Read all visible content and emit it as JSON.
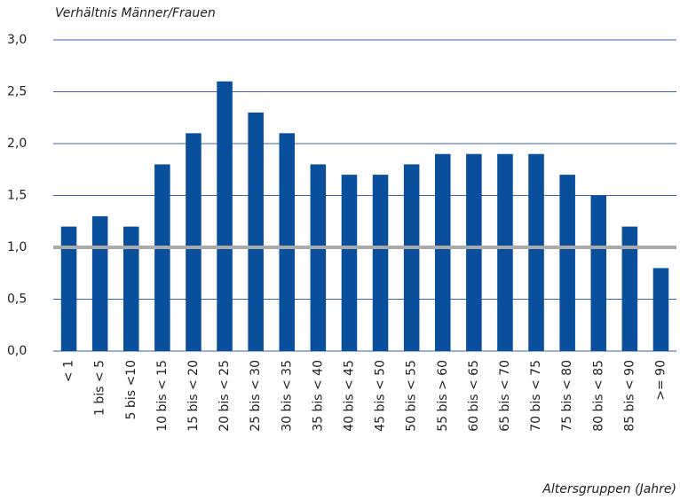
{
  "chart_data": {
    "type": "bar",
    "title": "Verhältnis Männer/Frauen",
    "x_label": "Altersgruppen (Jahre)",
    "categories": [
      "< 1",
      "1 bis < 5",
      "5 bis <10",
      "10 bis < 15",
      "15 bis < 20",
      "20 bis < 25",
      "25 bis < 30",
      "30 bis < 35",
      "35 bis < 40",
      "40 bis < 45",
      "45 bis < 50",
      "50 bis < 55",
      "55 bis > 60",
      "60 bis < 65",
      "65 bis < 70",
      "70 bis < 75",
      "75 bis < 80",
      "80 bis < 85",
      "85 bis < 90",
      ">= 90"
    ],
    "values": [
      1.2,
      1.3,
      1.2,
      1.8,
      2.1,
      2.6,
      2.3,
      2.1,
      1.8,
      1.7,
      1.7,
      1.8,
      1.9,
      1.9,
      1.9,
      1.9,
      1.7,
      1.5,
      1.2,
      0.8
    ],
    "color": "#0a4f9c",
    "ylim": [
      0,
      3
    ],
    "yticks": [
      {
        "value": 0,
        "label": "0,0"
      },
      {
        "value": 0.5,
        "label": "0,5"
      },
      {
        "value": 1,
        "label": "1,0"
      },
      {
        "value": 1.5,
        "label": "1,5"
      },
      {
        "value": 2,
        "label": "2,0"
      },
      {
        "value": 2.5,
        "label": "2,5"
      },
      {
        "value": 3,
        "label": "3,0"
      }
    ],
    "grid": true,
    "grid_color": "#3a62ad",
    "reference_line": {
      "value": 1,
      "color": "#aaaaaa"
    }
  }
}
